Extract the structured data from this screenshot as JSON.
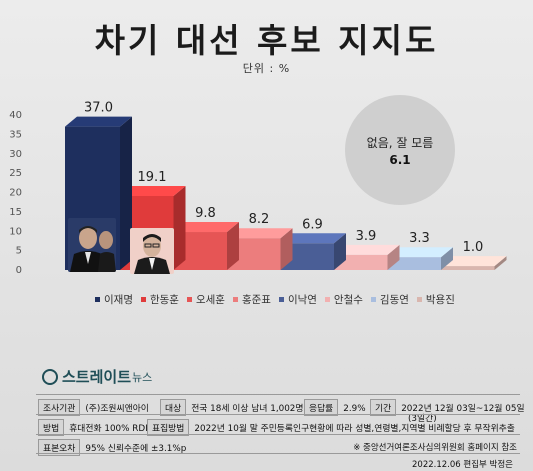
{
  "title": "차기 대선 후보 지지도",
  "unit": "단위 : %",
  "chart_data": {
    "type": "bar",
    "categories": [
      "이재명",
      "한동훈",
      "오세훈",
      "홍준표",
      "이낙연",
      "안철수",
      "김동연",
      "박용진"
    ],
    "values": [
      37.0,
      19.1,
      9.8,
      8.2,
      6.9,
      3.9,
      3.3,
      1.0
    ],
    "value_labels": [
      "37.0",
      "19.1",
      "9.8",
      "8.2",
      "6.9",
      "3.9",
      "3.3",
      "1.0"
    ],
    "colors": [
      "#1e2f5e",
      "#e03b3b",
      "#e65555",
      "#ec7d7d",
      "#4a5e96",
      "#f2b0b0",
      "#a9bedf",
      "#d9b6ae"
    ],
    "yticks": [
      0,
      5,
      10,
      15,
      20,
      25,
      30,
      35,
      40
    ],
    "ylim": [
      0,
      40
    ],
    "legend_position": "bottom",
    "annotation": {
      "label": "없음, 잘 모름",
      "value": "6.1"
    }
  },
  "legend": [
    "이재명",
    "한동훈",
    "오세훈",
    "홍준표",
    "이낙연",
    "안철수",
    "김동연",
    "박용진"
  ],
  "brand": {
    "name": "스트레이트",
    "suffix": "뉴스"
  },
  "survey": {
    "org_label": "조사기관",
    "org": "(주)조원씨앤아이",
    "target_label": "대상",
    "target": "전국 18세 이상 남녀 1,002명",
    "rate_label": "응답률",
    "rate": "2.9%",
    "period_label": "기간",
    "period": "2022년 12월 03일~12월 05일",
    "period_days": "(3일간)",
    "method_label": "방법",
    "method": "휴대전화 100% RDD방식",
    "sampling_label": "표집방법",
    "sampling": "2022년 10월 말 주민등록인구현황에 따라 성별,연령별,지역별 비례할당 후 무작위추출",
    "error_label": "표본오차",
    "error": "95% 신뢰수준에 ±3.1%p",
    "source_note": "※ 중앙선거여론조사심의위원회 홈페이지 참조"
  },
  "credit": "2022.12.06 편집부 박정은"
}
